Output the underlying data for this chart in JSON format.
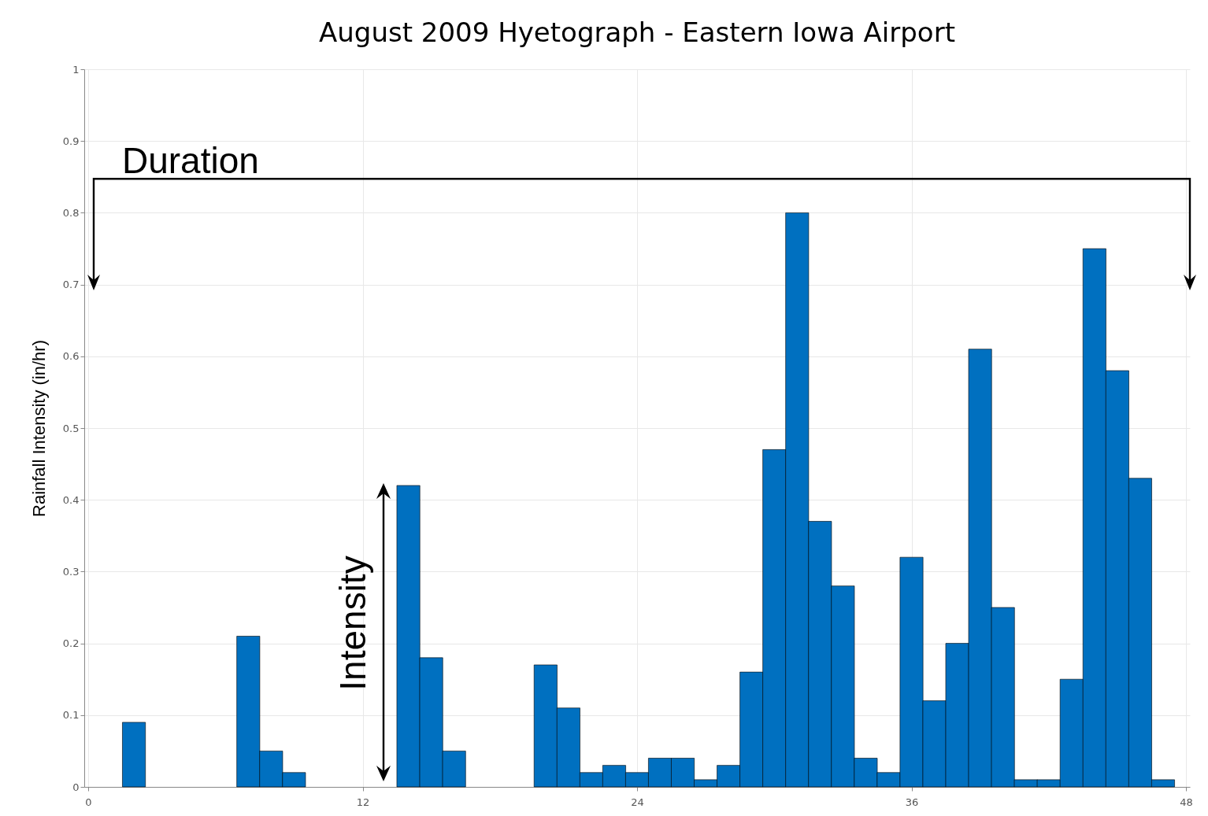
{
  "chart_data": {
    "type": "bar",
    "title": "August 2009 Hyetograph - Eastern Iowa Airport",
    "ylabel": "Rainfall Intensity (in/hr)",
    "x": [
      2,
      7,
      8,
      9,
      14,
      15,
      16,
      20,
      21,
      22,
      23,
      24,
      25,
      26,
      27,
      28,
      29,
      30,
      31,
      32,
      33,
      34,
      35,
      36,
      37,
      38,
      39,
      40,
      41,
      42,
      43,
      44,
      45,
      46,
      47
    ],
    "values": [
      0.09,
      0.21,
      0.05,
      0.02,
      0.42,
      0.18,
      0.05,
      0.17,
      0.11,
      0.02,
      0.03,
      0.02,
      0.04,
      0.04,
      0.01,
      0.03,
      0.16,
      0.47,
      0.8,
      0.37,
      0.28,
      0.04,
      0.02,
      0.32,
      0.12,
      0.2,
      0.61,
      0.25,
      0.01,
      0.01,
      0.15,
      0.75,
      0.58,
      0.43,
      0.01
    ],
    "color": "#0070c0",
    "xlim": [
      0,
      48
    ],
    "xticks": [
      0,
      12,
      24,
      36,
      48
    ],
    "ylim": [
      0,
      1
    ],
    "yticks": [
      0,
      0.1,
      0.2,
      0.3,
      0.4,
      0.5,
      0.6,
      0.7,
      0.8,
      0.9,
      1
    ],
    "grid": true,
    "annotations": [
      "Duration",
      "Intensity"
    ]
  }
}
